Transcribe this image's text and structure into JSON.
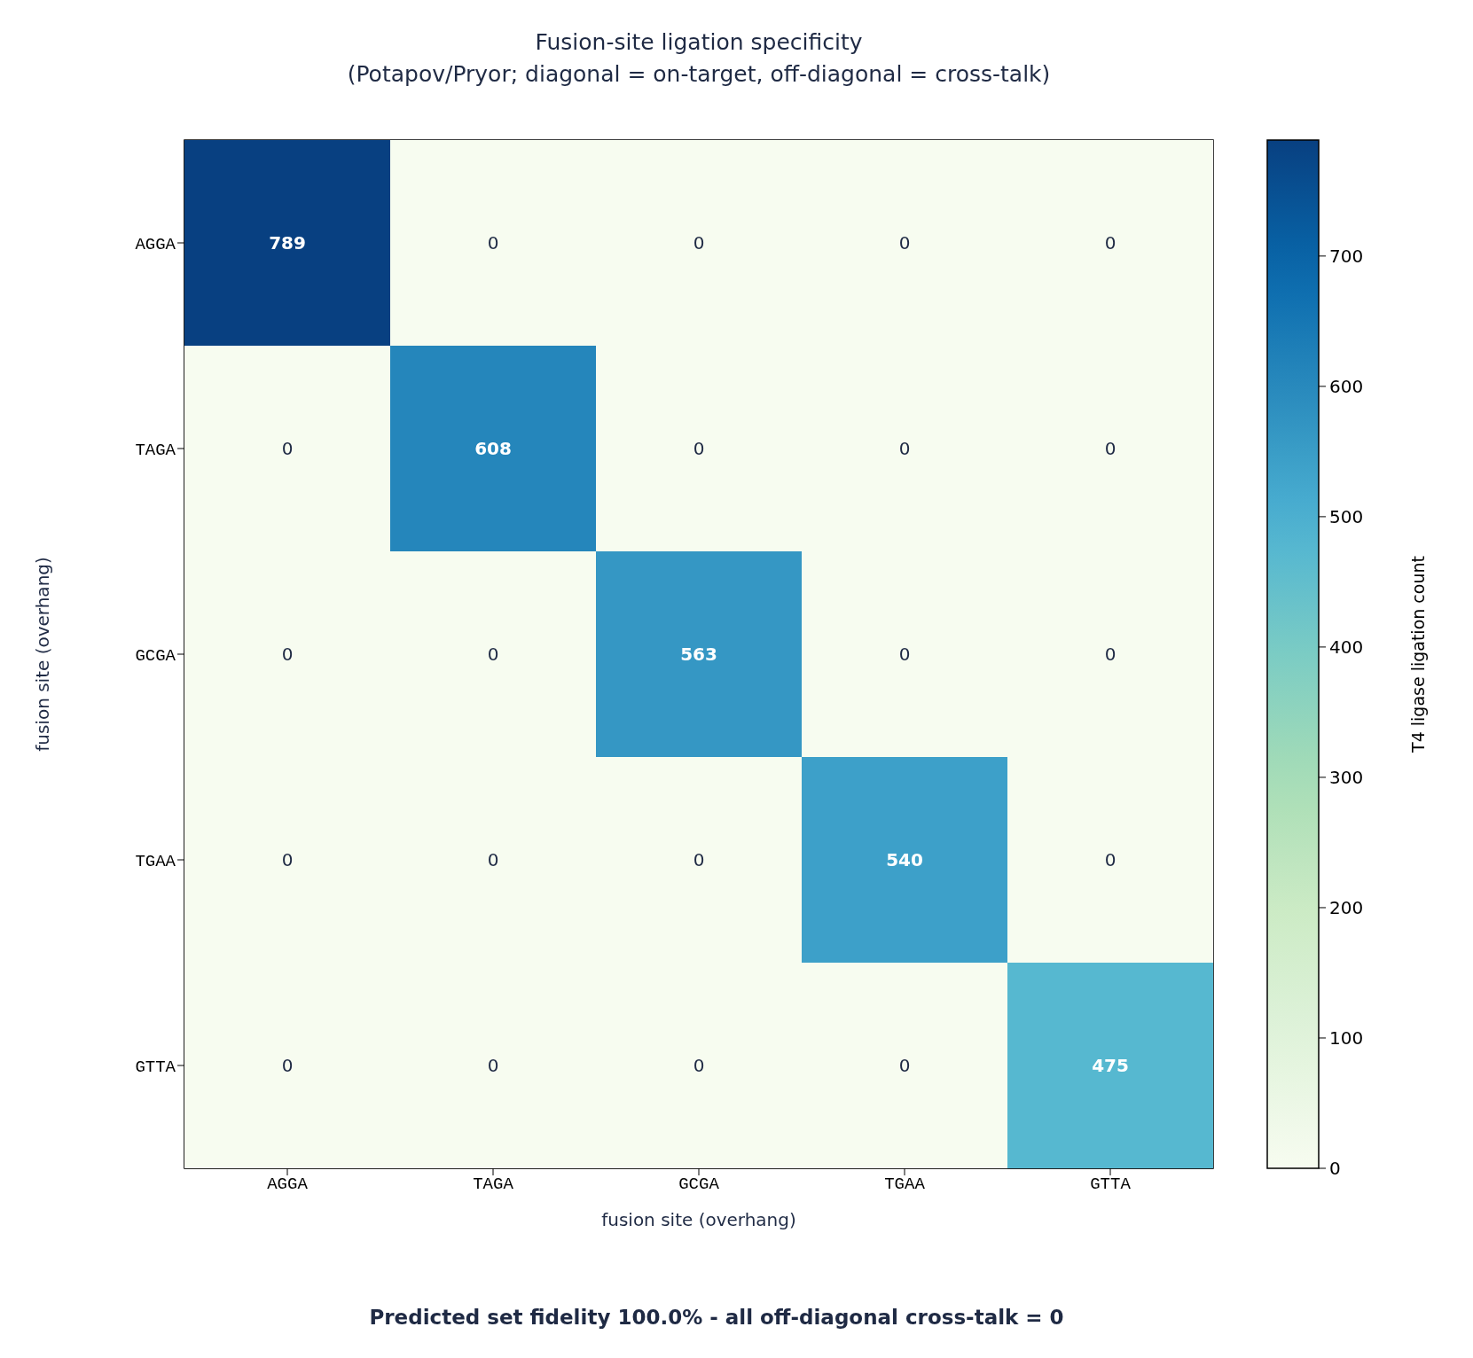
{
  "chart_data": {
    "type": "heatmap",
    "title": "Fusion-site ligation specificity",
    "subtitle": "(Potapov/Pryor; diagonal = on-target, off-diagonal = cross-talk)",
    "xlabel": "fusion site (overhang)",
    "ylabel": "fusion site (overhang)",
    "clabel": "T4 ligase ligation count",
    "categories": [
      "AGGA",
      "TAGA",
      "GCGA",
      "TGAA",
      "GTTA"
    ],
    "y_categories": [
      "AGGA",
      "TAGA",
      "GCGA",
      "TGAA",
      "GTTA"
    ],
    "cells": [
      [
        789,
        0,
        0,
        0,
        0
      ],
      [
        0,
        608,
        0,
        0,
        0
      ],
      [
        0,
        0,
        563,
        0,
        0
      ],
      [
        0,
        0,
        0,
        540,
        0
      ],
      [
        0,
        0,
        0,
        0,
        475
      ]
    ],
    "clim": [
      0,
      789
    ],
    "cticks": [
      0,
      100,
      200,
      300,
      400,
      500,
      600,
      700
    ],
    "data_labels": true,
    "annotations": [
      "Predicted set fidelity 100.0%  -  all off-diagonal cross-talk = 0"
    ]
  }
}
